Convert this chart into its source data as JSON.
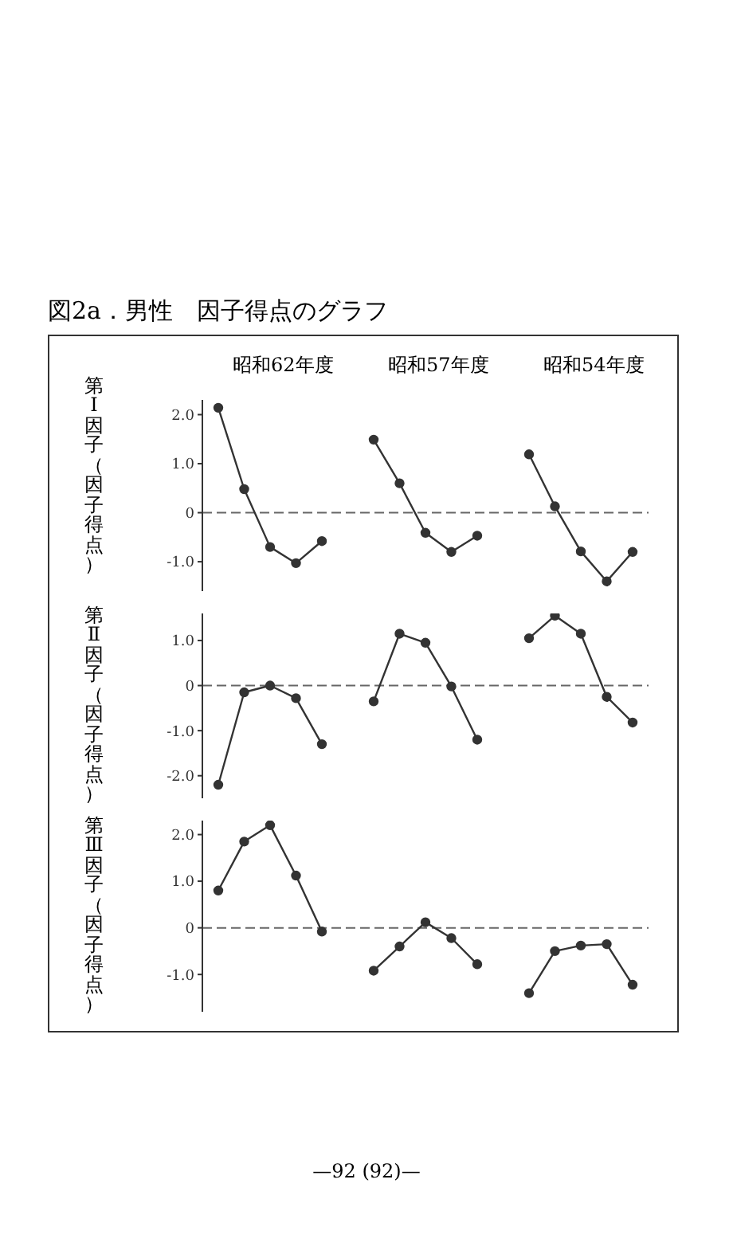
{
  "chart_data": [
    {
      "type": "line",
      "title": "図2a．男性　因子得点のグラフ",
      "ylabel": "第Ⅰ因子（因子得点）",
      "annotations": [
        "昭和62年度",
        "昭和57年度",
        "昭和54年度"
      ],
      "categories": [
        null,
        null,
        null,
        null,
        null,
        null,
        null,
        null,
        null,
        null,
        null,
        null,
        null,
        null,
        null,
        null,
        null
      ],
      "series": [
        {
          "color": "#333333",
          "values": [
            2.14,
            0.48,
            -0.7,
            -1.03,
            -0.58,
            null,
            null,
            null,
            null,
            null,
            null,
            null,
            null,
            null,
            null,
            null,
            null
          ]
        },
        {
          "color": "#333333",
          "values": [
            null,
            null,
            null,
            null,
            null,
            null,
            1.49,
            0.6,
            -0.41,
            -0.8,
            -0.47,
            null,
            null,
            null,
            null,
            null,
            null
          ]
        },
        {
          "color": "#333333",
          "values": [
            null,
            null,
            null,
            null,
            null,
            null,
            null,
            null,
            null,
            null,
            null,
            null,
            1.19,
            0.13,
            -0.79,
            -1.4,
            -0.8
          ]
        }
      ],
      "ylim": [
        -1.6,
        2.3
      ],
      "yticks": [
        {
          "value": 2,
          "label": "2.0"
        },
        {
          "value": 1,
          "label": "1.0"
        },
        {
          "value": 0,
          "label": "0"
        },
        {
          "value": -1,
          "label": "-1.0"
        }
      ],
      "tick_labels": "y",
      "grid": false,
      "legend": false,
      "marker": "circle",
      "line_style": "solid",
      "ref_lines": [
        {
          "axis": "y",
          "value": 0,
          "line_style": "dashed"
        }
      ]
    },
    {
      "type": "line",
      "ylabel": "第Ⅱ因子（因子得点）",
      "categories": [
        null,
        null,
        null,
        null,
        null,
        null,
        null,
        null,
        null,
        null,
        null,
        null,
        null,
        null,
        null,
        null,
        null
      ],
      "series": [
        {
          "color": "#333333",
          "values": [
            -2.2,
            -0.15,
            0,
            -0.28,
            -1.3,
            null,
            null,
            null,
            null,
            null,
            null,
            null,
            null,
            null,
            null,
            null,
            null
          ]
        },
        {
          "color": "#333333",
          "values": [
            null,
            null,
            null,
            null,
            null,
            null,
            -0.35,
            1.15,
            0.95,
            -0.02,
            -1.2,
            null,
            null,
            null,
            null,
            null,
            null
          ]
        },
        {
          "color": "#333333",
          "values": [
            null,
            null,
            null,
            null,
            null,
            null,
            null,
            null,
            null,
            null,
            null,
            null,
            1.05,
            1.55,
            1.15,
            -0.25,
            -0.82
          ]
        }
      ],
      "ylim": [
        -2.5,
        1.6
      ],
      "yticks": [
        {
          "value": 1,
          "label": "1.0"
        },
        {
          "value": 0,
          "label": "0"
        },
        {
          "value": -1,
          "label": "-1.0"
        },
        {
          "value": -2,
          "label": "-2.0"
        }
      ],
      "tick_labels": "y",
      "grid": false,
      "legend": false,
      "marker": "circle",
      "line_style": "solid",
      "ref_lines": [
        {
          "axis": "y",
          "value": 0,
          "line_style": "dashed"
        }
      ]
    },
    {
      "type": "line",
      "ylabel": "第Ⅲ因子（因子得点）",
      "annotations": [
        "—92 (92)—"
      ],
      "categories": [
        null,
        null,
        null,
        null,
        null,
        null,
        null,
        null,
        null,
        null,
        null,
        null,
        null,
        null,
        null,
        null,
        null
      ],
      "series": [
        {
          "color": "#333333",
          "values": [
            0.8,
            1.85,
            2.2,
            1.12,
            -0.08,
            null,
            null,
            null,
            null,
            null,
            null,
            null,
            null,
            null,
            null,
            null,
            null
          ]
        },
        {
          "color": "#333333",
          "values": [
            null,
            null,
            null,
            null,
            null,
            null,
            -0.92,
            -0.4,
            0.12,
            -0.22,
            -0.78,
            null,
            null,
            null,
            null,
            null,
            null
          ]
        },
        {
          "color": "#333333",
          "values": [
            null,
            null,
            null,
            null,
            null,
            null,
            null,
            null,
            null,
            null,
            null,
            null,
            -1.4,
            -0.5,
            -0.38,
            -0.35,
            -1.22
          ]
        }
      ],
      "ylim": [
        -1.8,
        2.3
      ],
      "yticks": [
        {
          "value": 2,
          "label": "2.0"
        },
        {
          "value": 1,
          "label": "1.0"
        },
        {
          "value": 0,
          "label": "0"
        },
        {
          "value": -1,
          "label": "-1.0"
        }
      ],
      "tick_labels": "y",
      "grid": false,
      "legend": false,
      "marker": "circle",
      "line_style": "solid",
      "ref_lines": [
        {
          "axis": "y",
          "value": 0,
          "line_style": "dashed"
        }
      ]
    }
  ]
}
